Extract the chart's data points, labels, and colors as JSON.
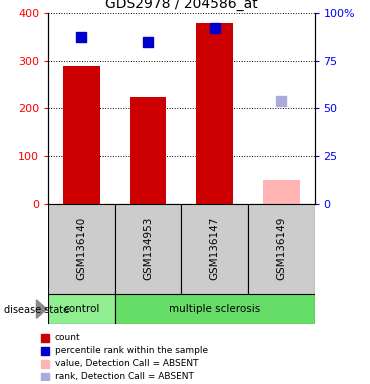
{
  "title": "GDS2978 / 204586_at",
  "samples": [
    "GSM136140",
    "GSM134953",
    "GSM136147",
    "GSM136149"
  ],
  "bar_values": [
    290,
    225,
    380,
    50
  ],
  "bar_colors": [
    "#cc0000",
    "#cc0000",
    "#cc0000",
    "#ffb3b3"
  ],
  "rank_values": [
    87.5,
    85.0,
    92.5,
    53.75
  ],
  "rank_colors": [
    "#0000cc",
    "#0000cc",
    "#0000cc",
    "#aaaadd"
  ],
  "ylim_left": [
    0,
    400
  ],
  "ylim_right": [
    0,
    100
  ],
  "yticks_left": [
    0,
    100,
    200,
    300,
    400
  ],
  "yticks_right": [
    0,
    25,
    50,
    75,
    100
  ],
  "ytick_labels_right": [
    "0",
    "25",
    "50",
    "75",
    "100%"
  ],
  "legend_items": [
    {
      "label": "count",
      "color": "#cc0000"
    },
    {
      "label": "percentile rank within the sample",
      "color": "#0000cc"
    },
    {
      "label": "value, Detection Call = ABSENT",
      "color": "#ffb3b3"
    },
    {
      "label": "rank, Detection Call = ABSENT",
      "color": "#aaaadd"
    }
  ]
}
